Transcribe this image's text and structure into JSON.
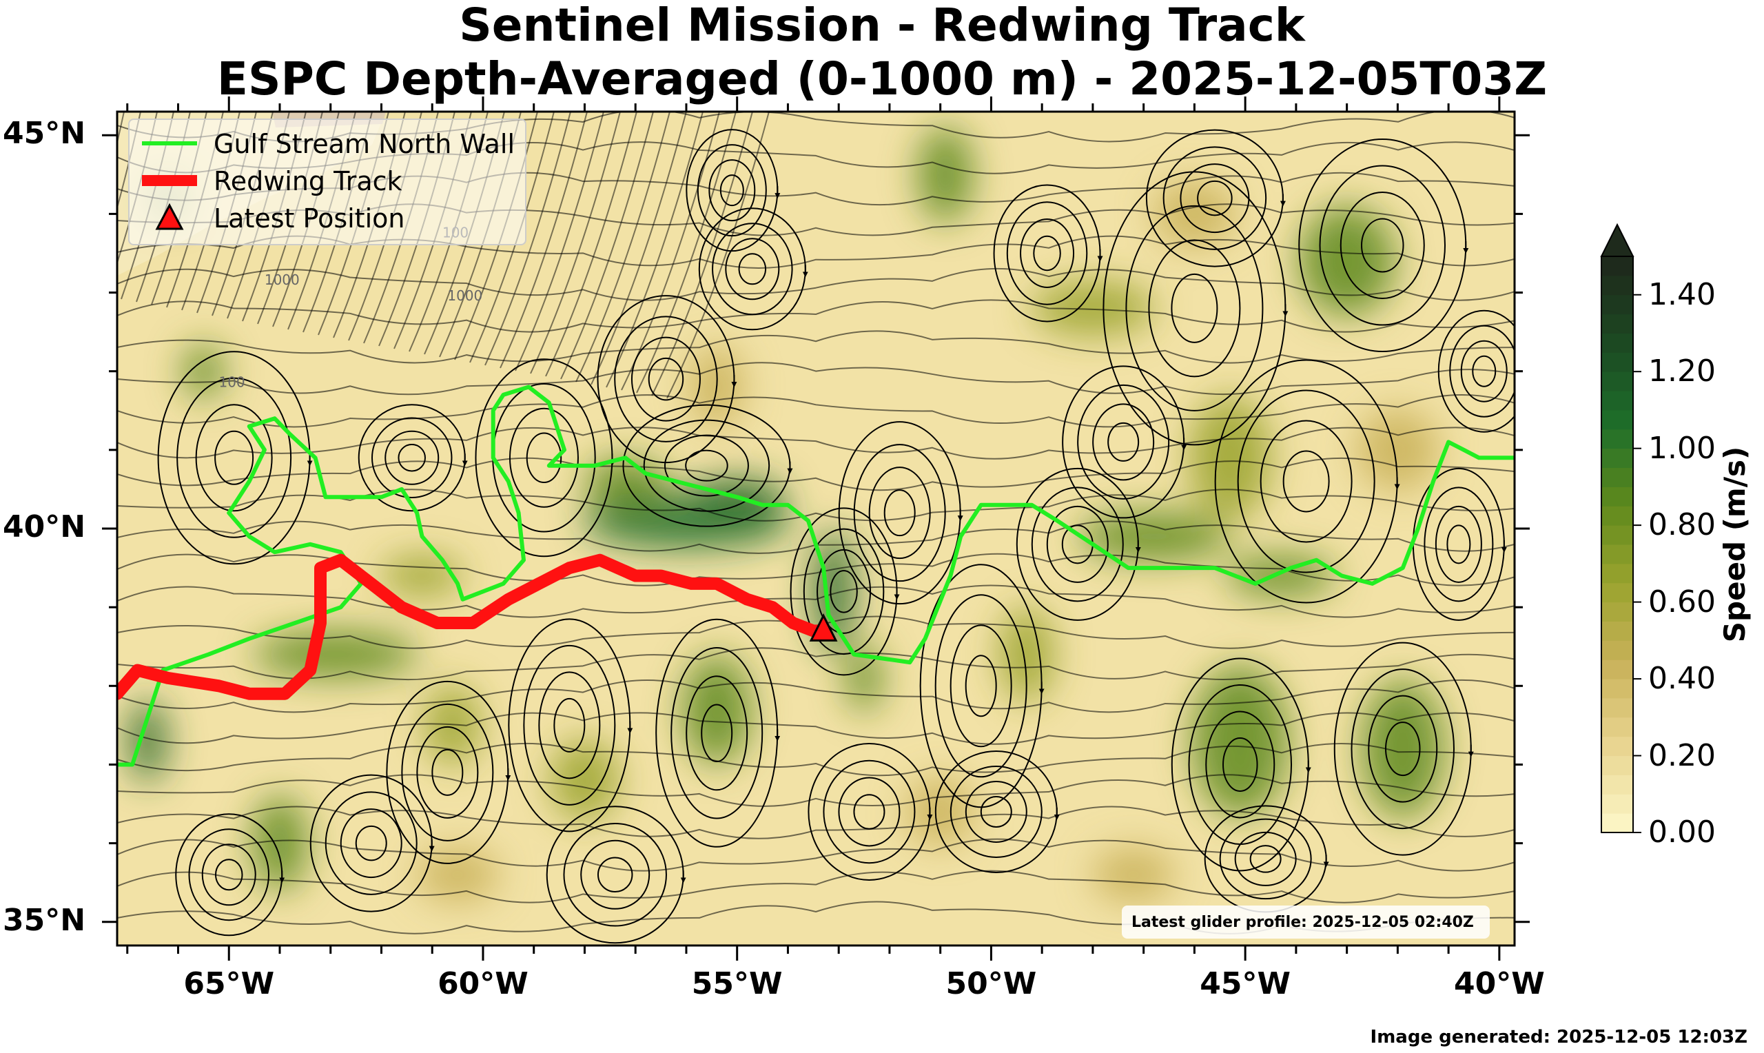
{
  "title": {
    "line1": "Sentinel Mission - Redwing Track",
    "line2": "ESPC Depth-Averaged (0-1000 m) - 2025-12-05T03Z"
  },
  "map": {
    "lon_range": [
      -67.2,
      -39.7
    ],
    "lat_range": [
      34.7,
      45.3
    ],
    "x_ticks": [
      {
        "lon": -65,
        "label": "65°W"
      },
      {
        "lon": -60,
        "label": "60°W"
      },
      {
        "lon": -55,
        "label": "55°W"
      },
      {
        "lon": -50,
        "label": "50°W"
      },
      {
        "lon": -45,
        "label": "45°W"
      },
      {
        "lon": -40,
        "label": "40°W"
      }
    ],
    "y_ticks": [
      {
        "lat": 45,
        "label": "45°N"
      },
      {
        "lat": 40,
        "label": "40°N"
      },
      {
        "lat": 35,
        "label": "35°N"
      }
    ],
    "minor_lon_step": 1,
    "minor_lat_step": 1,
    "bathymetry_labels": [
      "100",
      "1000"
    ]
  },
  "legend": {
    "items": [
      {
        "label": "Gulf Stream North Wall",
        "color": "#22ee22",
        "kind": "line"
      },
      {
        "label": "Redwing Track",
        "color": "#ff1111",
        "kind": "thick-line"
      },
      {
        "label": "Latest Position",
        "color": "#ff1111",
        "kind": "triangle"
      }
    ]
  },
  "colorbar": {
    "title": "Speed (m/s)",
    "min": 0.0,
    "max": 1.5,
    "step": 0.05,
    "extend": "max",
    "tick_labels": [
      "0.00",
      "0.20",
      "0.40",
      "0.60",
      "0.80",
      "1.00",
      "1.20",
      "1.40"
    ],
    "tick_values": [
      0.0,
      0.2,
      0.4,
      0.6,
      0.8,
      1.0,
      1.2,
      1.4
    ],
    "color_stops": [
      "#fbf4c3",
      "#e8d48f",
      "#c9b25a",
      "#9aa32e",
      "#5f8a1d",
      "#1e6e2a",
      "#1c4a22",
      "#1e2a1c"
    ]
  },
  "gulf_stream_north_wall": {
    "color": "#22ee22",
    "points": [
      [
        -67.2,
        37.0
      ],
      [
        -66.9,
        37.0
      ],
      [
        -66.6,
        37.6
      ],
      [
        -66.3,
        38.2
      ],
      [
        -65.4,
        38.4
      ],
      [
        -64.6,
        38.6
      ],
      [
        -63.7,
        38.8
      ],
      [
        -62.8,
        39.0
      ],
      [
        -62.4,
        39.3
      ],
      [
        -62.8,
        39.7
      ],
      [
        -63.4,
        39.8
      ],
      [
        -64.1,
        39.7
      ],
      [
        -64.6,
        39.9
      ],
      [
        -65.0,
        40.2
      ],
      [
        -64.6,
        40.6
      ],
      [
        -64.3,
        41.0
      ],
      [
        -64.6,
        41.3
      ],
      [
        -64.1,
        41.4
      ],
      [
        -63.8,
        41.2
      ],
      [
        -63.3,
        40.9
      ],
      [
        -63.1,
        40.4
      ],
      [
        -62.0,
        40.4
      ],
      [
        -61.6,
        40.5
      ],
      [
        -61.3,
        40.2
      ],
      [
        -61.2,
        39.9
      ],
      [
        -60.8,
        39.6
      ],
      [
        -60.5,
        39.3
      ],
      [
        -60.4,
        39.1
      ],
      [
        -59.6,
        39.3
      ],
      [
        -59.2,
        39.6
      ],
      [
        -59.3,
        40.2
      ],
      [
        -59.5,
        40.6
      ],
      [
        -59.8,
        40.9
      ],
      [
        -59.8,
        41.5
      ],
      [
        -59.6,
        41.7
      ],
      [
        -59.1,
        41.8
      ],
      [
        -58.7,
        41.6
      ],
      [
        -58.4,
        41.0
      ],
      [
        -58.7,
        40.8
      ],
      [
        -57.8,
        40.8
      ],
      [
        -57.2,
        40.9
      ],
      [
        -56.8,
        40.7
      ],
      [
        -56.2,
        40.6
      ],
      [
        -55.6,
        40.5
      ],
      [
        -55.0,
        40.4
      ],
      [
        -54.5,
        40.3
      ],
      [
        -54.0,
        40.3
      ],
      [
        -53.6,
        40.1
      ],
      [
        -53.3,
        39.5
      ],
      [
        -53.2,
        38.9
      ],
      [
        -52.7,
        38.4
      ],
      [
        -51.6,
        38.3
      ],
      [
        -51.3,
        38.6
      ],
      [
        -50.8,
        39.4
      ],
      [
        -50.6,
        39.9
      ],
      [
        -50.2,
        40.3
      ],
      [
        -49.2,
        40.3
      ],
      [
        -48.7,
        40.1
      ],
      [
        -48.0,
        39.8
      ],
      [
        -47.3,
        39.5
      ],
      [
        -45.6,
        39.5
      ],
      [
        -44.8,
        39.3
      ],
      [
        -44.1,
        39.5
      ],
      [
        -43.6,
        39.6
      ],
      [
        -43.1,
        39.4
      ],
      [
        -42.5,
        39.3
      ],
      [
        -41.9,
        39.5
      ],
      [
        -41.6,
        40.0
      ],
      [
        -41.3,
        40.6
      ],
      [
        -41.0,
        41.1
      ],
      [
        -40.7,
        41.0
      ],
      [
        -40.4,
        40.9
      ],
      [
        -39.7,
        40.9
      ]
    ]
  },
  "redwing_track": {
    "color": "#ff1111",
    "points": [
      [
        -67.2,
        37.9
      ],
      [
        -66.8,
        38.2
      ],
      [
        -66.2,
        38.1
      ],
      [
        -65.2,
        38.0
      ],
      [
        -64.6,
        37.9
      ],
      [
        -63.9,
        37.9
      ],
      [
        -63.4,
        38.2
      ],
      [
        -63.2,
        38.8
      ],
      [
        -63.2,
        39.5
      ],
      [
        -62.8,
        39.6
      ],
      [
        -62.2,
        39.3
      ],
      [
        -61.6,
        39.0
      ],
      [
        -60.9,
        38.8
      ],
      [
        -60.2,
        38.8
      ],
      [
        -59.5,
        39.1
      ],
      [
        -58.9,
        39.3
      ],
      [
        -58.3,
        39.5
      ],
      [
        -57.7,
        39.6
      ],
      [
        -57.0,
        39.4
      ],
      [
        -56.5,
        39.4
      ],
      [
        -55.9,
        39.3
      ],
      [
        -55.4,
        39.3
      ],
      [
        -54.8,
        39.1
      ],
      [
        -54.3,
        39.0
      ],
      [
        -53.9,
        38.8
      ],
      [
        -53.5,
        38.7
      ],
      [
        -53.3,
        38.7
      ]
    ]
  },
  "latest_position": {
    "lon": -53.3,
    "lat": 38.7
  },
  "annotation": "Latest glider profile: 2025-12-05 02:40Z",
  "footer": "Image generated: 2025-12-05 12:03Z"
}
